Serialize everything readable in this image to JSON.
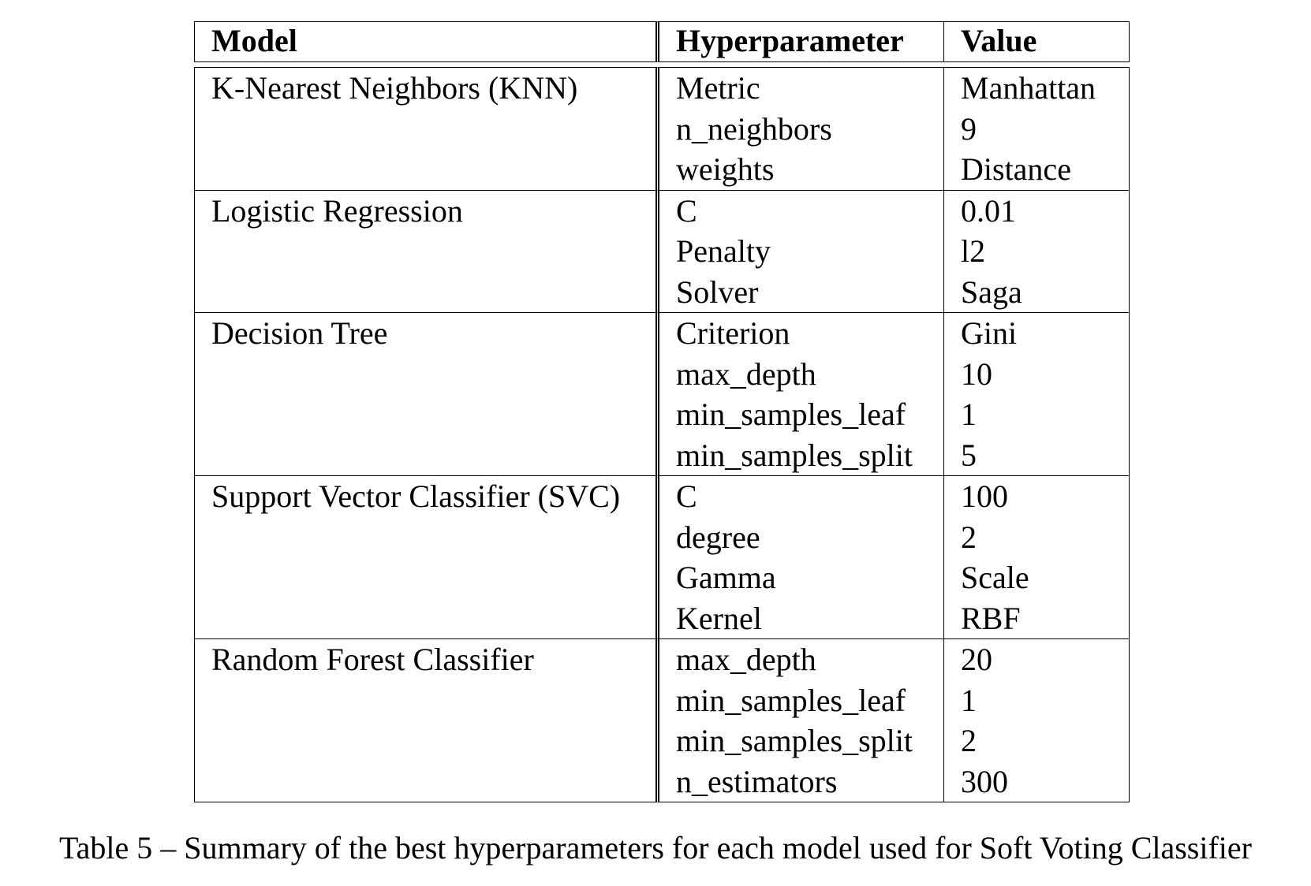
{
  "table": {
    "headers": {
      "model": "Model",
      "hyperparameter": "Hyperparameter",
      "value": "Value"
    },
    "groups": [
      {
        "model": "K-Nearest Neighbors (KNN)",
        "rows": [
          {
            "param": "Metric",
            "value": "Manhattan"
          },
          {
            "param": "n_neighbors",
            "value": "9"
          },
          {
            "param": "weights",
            "value": "Distance"
          }
        ]
      },
      {
        "model": "Logistic Regression",
        "rows": [
          {
            "param": "C",
            "value": "0.01"
          },
          {
            "param": "Penalty",
            "value": "l2"
          },
          {
            "param": "Solver",
            "value": "Saga"
          }
        ]
      },
      {
        "model": "Decision Tree",
        "rows": [
          {
            "param": "Criterion",
            "value": "Gini"
          },
          {
            "param": "max_depth",
            "value": "10"
          },
          {
            "param": "min_samples_leaf",
            "value": "1"
          },
          {
            "param": "min_samples_split",
            "value": "5"
          }
        ]
      },
      {
        "model": "Support Vector Classifier (SVC)",
        "rows": [
          {
            "param": "C",
            "value": "100"
          },
          {
            "param": "degree",
            "value": "2"
          },
          {
            "param": "Gamma",
            "value": "Scale"
          },
          {
            "param": "Kernel",
            "value": "RBF"
          }
        ]
      },
      {
        "model": "Random Forest Classifier",
        "rows": [
          {
            "param": "max_depth",
            "value": "20"
          },
          {
            "param": "min_samples_leaf",
            "value": "1"
          },
          {
            "param": "min_samples_split",
            "value": "2"
          },
          {
            "param": "n_estimators",
            "value": "300"
          }
        ]
      }
    ]
  },
  "caption": "Table 5 – Summary of the best hyperparameters for each model used for Soft Voting Classifier"
}
